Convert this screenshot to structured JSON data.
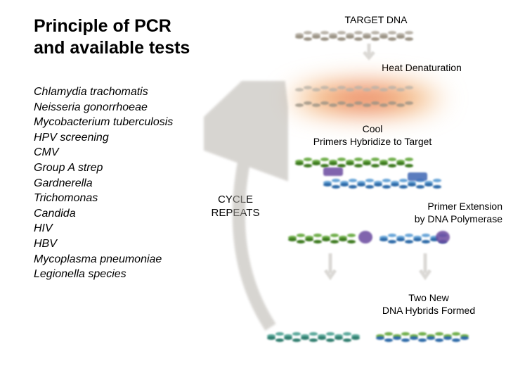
{
  "title": "Principle of PCR\nand available tests",
  "tests": [
    "Chlamydia trachomatis",
    "Neisseria gonorrhoeae",
    "Mycobacterium tuberculosis",
    "HPV screening",
    "CMV",
    "Group A strep",
    "Gardnerella",
    "Trichomonas",
    "Candida",
    "HIV",
    "HBV",
    "Mycoplasma pneumoniae",
    "Legionella species"
  ],
  "labels": {
    "target_dna": "TARGET DNA",
    "heat_denaturation": "Heat Denaturation",
    "cool_primers": "Cool\nPrimers Hybridize to Target",
    "cycle_repeats": "CYCLE\nREPEATS",
    "primer_extension": "Primer Extension\nby DNA Polymerase",
    "two_new": "Two New\nDNA Hybrids Formed"
  },
  "colors": {
    "dna_gray1": "#b9b3a9",
    "dna_gray2": "#9a9284",
    "dna_teal1": "#5aa89a",
    "dna_teal2": "#2f7d6e",
    "dna_green1": "#6fae4a",
    "dna_green2": "#3d7a1f",
    "dna_blue1": "#6aa6d8",
    "dna_blue2": "#2d6aa8",
    "primer_purple": "#6a4a9f",
    "primer_blue": "#3e66b3",
    "heat_red": "#e4554b",
    "heat_orange": "#f0a45a",
    "arrow_gray": "#b8b4ad",
    "text": "#000000"
  },
  "layout": {
    "helix_segments": 14,
    "short_segments": 8
  }
}
